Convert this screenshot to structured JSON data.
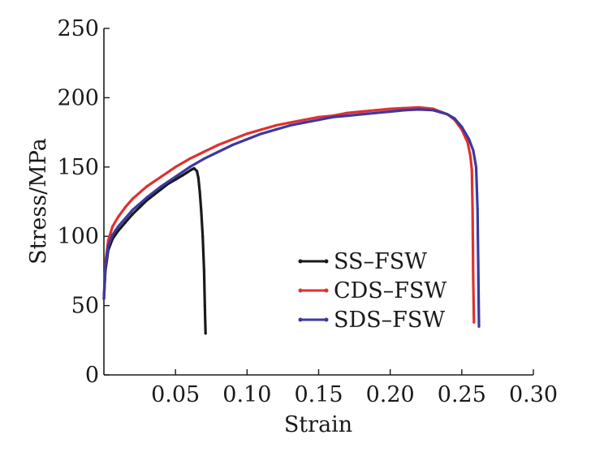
{
  "chart_data": {
    "type": "line",
    "title": "",
    "xlabel": "Strain",
    "ylabel": "Stress/MPa",
    "xlim": [
      0,
      0.3
    ],
    "ylim": [
      0,
      250
    ],
    "grid": false,
    "legend_position": "lower-right",
    "x_ticks": [
      {
        "value": 0.05,
        "label": "0.05"
      },
      {
        "value": 0.1,
        "label": "0.10"
      },
      {
        "value": 0.15,
        "label": "0.15"
      },
      {
        "value": 0.2,
        "label": "0.20"
      },
      {
        "value": 0.25,
        "label": "0.25"
      },
      {
        "value": 0.3,
        "label": "0.30"
      }
    ],
    "y_ticks": [
      {
        "value": 0,
        "label": "0"
      },
      {
        "value": 50,
        "label": "50"
      },
      {
        "value": 100,
        "label": "100"
      },
      {
        "value": 150,
        "label": "150"
      },
      {
        "value": 200,
        "label": "200"
      },
      {
        "value": 250,
        "label": "250"
      }
    ],
    "series": [
      {
        "name": "SS–FSW",
        "color": "#1a1a1a",
        "x": [
          0,
          0.001,
          0.003,
          0.006,
          0.01,
          0.015,
          0.02,
          0.025,
          0.03,
          0.035,
          0.04,
          0.045,
          0.05,
          0.055,
          0.058,
          0.061,
          0.063,
          0.065,
          0.066,
          0.067,
          0.068,
          0.069,
          0.07,
          0.0705,
          0.071
        ],
        "y": [
          55,
          75,
          90,
          98,
          104,
          110,
          116,
          121,
          126,
          130,
          134,
          138,
          141,
          144,
          146,
          148,
          149,
          147,
          142,
          132,
          118,
          100,
          75,
          50,
          30
        ]
      },
      {
        "name": "CDS–FSW",
        "color": "#e03030",
        "x": [
          0,
          0.001,
          0.003,
          0.006,
          0.01,
          0.015,
          0.02,
          0.03,
          0.04,
          0.05,
          0.06,
          0.07,
          0.08,
          0.09,
          0.1,
          0.11,
          0.12,
          0.13,
          0.14,
          0.15,
          0.16,
          0.17,
          0.18,
          0.19,
          0.2,
          0.21,
          0.22,
          0.23,
          0.24,
          0.245,
          0.25,
          0.254,
          0.256,
          0.257,
          0.2575,
          0.258,
          0.2585
        ],
        "y": [
          55,
          80,
          97,
          107,
          114,
          121,
          127,
          136,
          143,
          150,
          156,
          161,
          166,
          170,
          174,
          177,
          180,
          182,
          184,
          186,
          187,
          189,
          190,
          191,
          192,
          192.5,
          193,
          192,
          188,
          184,
          177,
          168,
          158,
          148,
          120,
          70,
          38
        ]
      },
      {
        "name": "SDS–FSW",
        "color": "#3a3aa0",
        "x": [
          0,
          0.001,
          0.003,
          0.006,
          0.01,
          0.015,
          0.02,
          0.03,
          0.04,
          0.05,
          0.06,
          0.07,
          0.08,
          0.09,
          0.1,
          0.11,
          0.12,
          0.13,
          0.14,
          0.15,
          0.16,
          0.17,
          0.18,
          0.19,
          0.2,
          0.21,
          0.22,
          0.23,
          0.24,
          0.245,
          0.25,
          0.255,
          0.258,
          0.26,
          0.261,
          0.2615,
          0.262
        ],
        "y": [
          55,
          78,
          93,
          101,
          107,
          113,
          119,
          128,
          136,
          143,
          150,
          156,
          161,
          166,
          170,
          174,
          177,
          180,
          182,
          184,
          186,
          187,
          188,
          189,
          190,
          191,
          191.5,
          191,
          188,
          185,
          179,
          170,
          162,
          150,
          120,
          80,
          35
        ]
      }
    ]
  }
}
